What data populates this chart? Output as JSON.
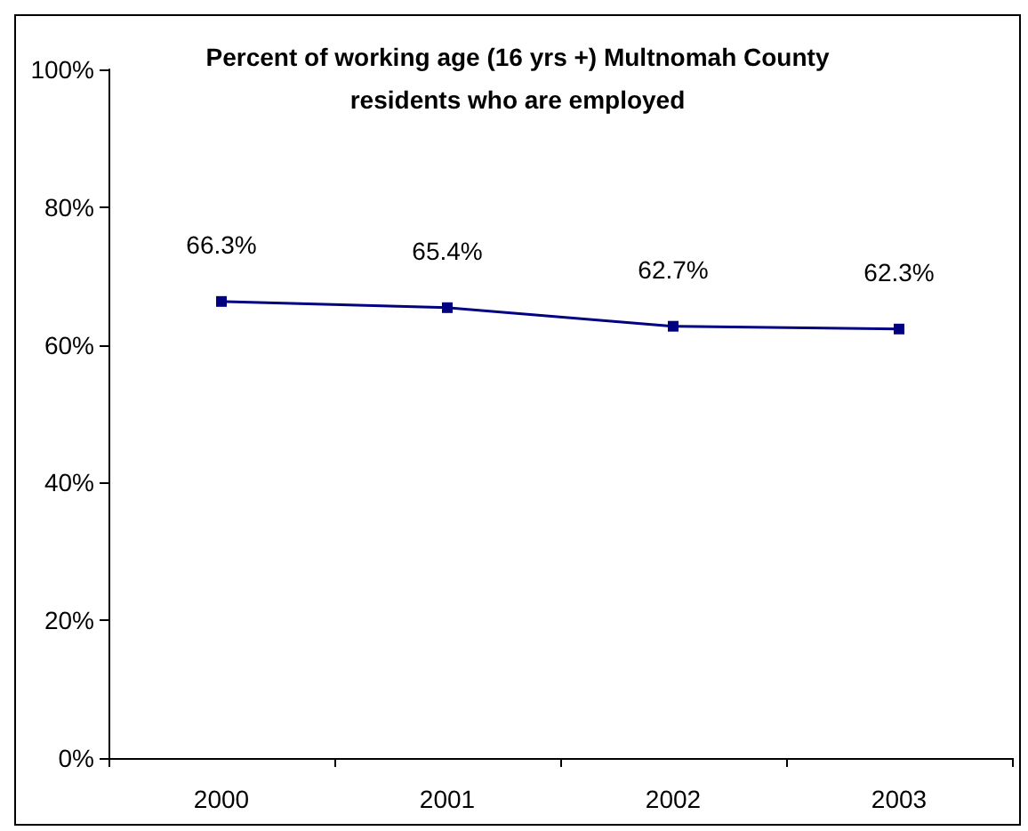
{
  "chart_data": {
    "type": "line",
    "title": "Percent of working age (16 yrs +) Multnomah County\nresidents who are employed",
    "categories": [
      "2000",
      "2001",
      "2002",
      "2003"
    ],
    "series": [
      {
        "color": "#000080",
        "values": [
          66.3,
          65.4,
          62.7,
          62.3
        ],
        "value_labels": [
          "66.3%",
          "65.4%",
          "62.7%",
          "62.3%"
        ]
      }
    ],
    "ylim": [
      0,
      100
    ],
    "yticks": [
      {
        "value": 0,
        "label": "0%"
      },
      {
        "value": 20,
        "label": "20%"
      },
      {
        "value": 40,
        "label": "40%"
      },
      {
        "value": 60,
        "label": "60%"
      },
      {
        "value": 80,
        "label": "80%"
      },
      {
        "value": 100,
        "label": "100%"
      }
    ],
    "marker": "square",
    "line_style": "solid"
  }
}
